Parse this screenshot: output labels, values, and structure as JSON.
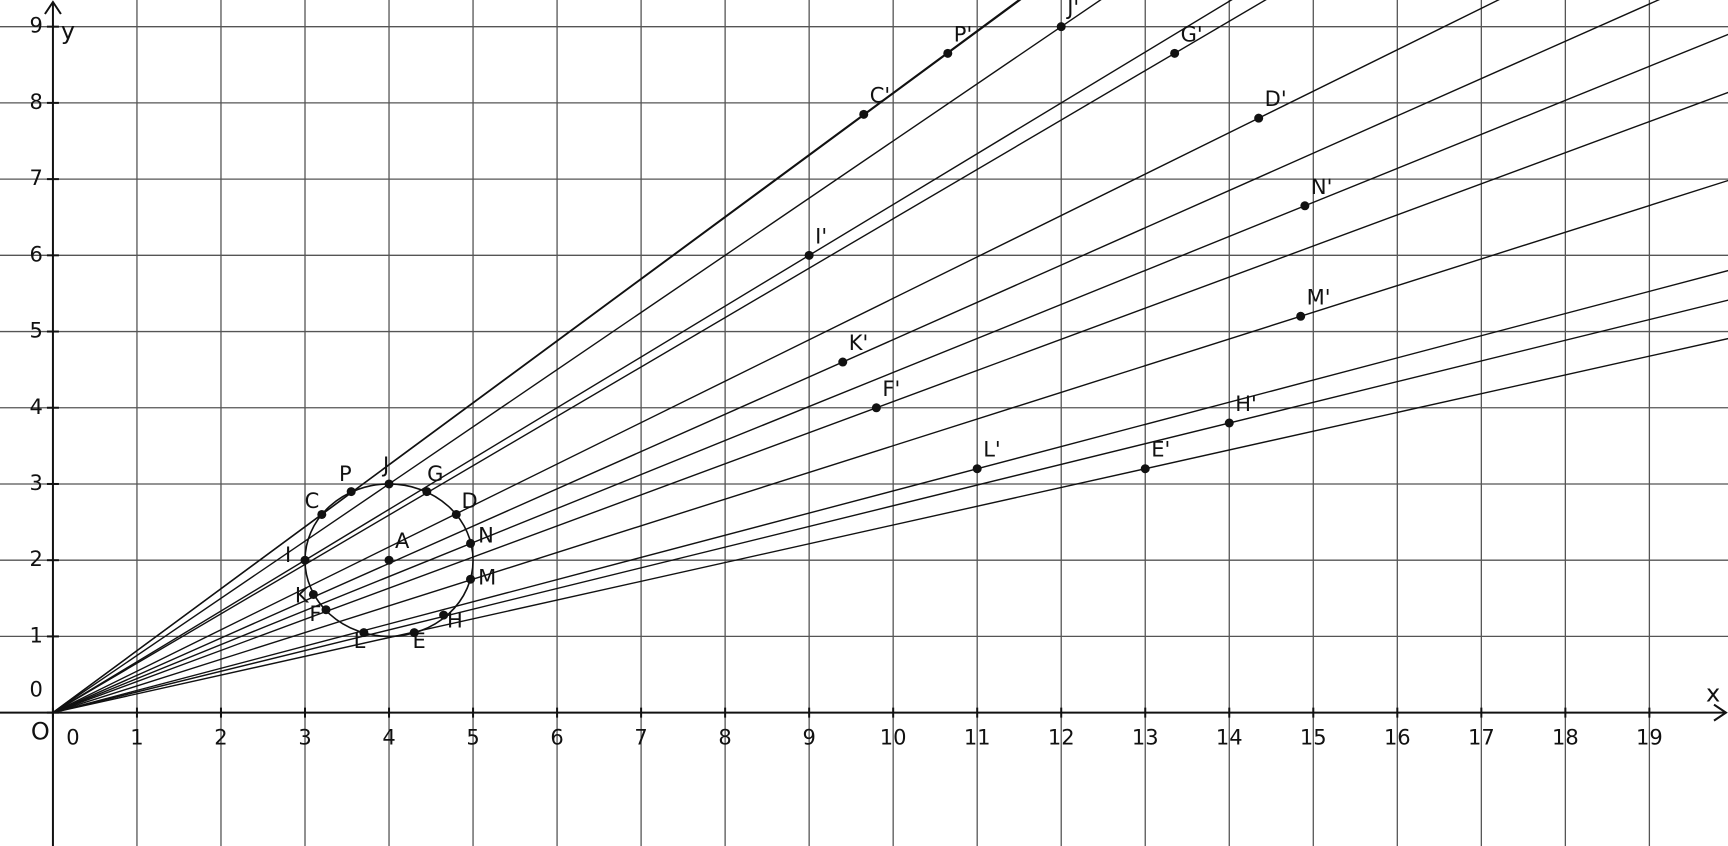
{
  "axes": {
    "x_label": "x",
    "y_label": "y",
    "origin_label": "O",
    "xlim": [
      -0.63,
      19.9
    ],
    "ylim": [
      -1.75,
      9.35
    ],
    "xticks": [
      0,
      1,
      2,
      3,
      4,
      5,
      6,
      7,
      8,
      9,
      10,
      11,
      12,
      13,
      14,
      15,
      16,
      17,
      18,
      19
    ],
    "yticks": [
      0,
      1,
      2,
      3,
      4,
      5,
      6,
      7,
      8,
      9
    ]
  },
  "circle": {
    "center": {
      "label": "A",
      "x": 4,
      "y": 2
    },
    "radius": 1
  },
  "points": [
    {
      "label": "C",
      "x": 3.2,
      "y": 2.6
    },
    {
      "label": "P",
      "x": 3.55,
      "y": 2.9
    },
    {
      "label": "J",
      "x": 4,
      "y": 3
    },
    {
      "label": "G",
      "x": 4.45,
      "y": 2.9
    },
    {
      "label": "D",
      "x": 4.8,
      "y": 2.6
    },
    {
      "label": "N",
      "x": 4.97,
      "y": 2.22
    },
    {
      "label": "M",
      "x": 4.97,
      "y": 1.75
    },
    {
      "label": "H",
      "x": 4.65,
      "y": 1.28
    },
    {
      "label": "E",
      "x": 4.3,
      "y": 1.05
    },
    {
      "label": "L",
      "x": 3.7,
      "y": 1.05
    },
    {
      "label": "F",
      "x": 3.25,
      "y": 1.35
    },
    {
      "label": "K",
      "x": 3.1,
      "y": 1.55
    },
    {
      "label": "I",
      "x": 3.0,
      "y": 2.0
    }
  ],
  "images": [
    {
      "label": "C'",
      "x": 9.65,
      "y": 7.85
    },
    {
      "label": "P'",
      "x": 10.65,
      "y": 8.65
    },
    {
      "label": "J'",
      "x": 12,
      "y": 9
    },
    {
      "label": "G'",
      "x": 13.35,
      "y": 8.65
    },
    {
      "label": "D'",
      "x": 14.35,
      "y": 7.8
    },
    {
      "label": "N'",
      "x": 14.9,
      "y": 6.65
    },
    {
      "label": "M'",
      "x": 14.85,
      "y": 5.2
    },
    {
      "label": "H'",
      "x": 14,
      "y": 3.8
    },
    {
      "label": "E'",
      "x": 13,
      "y": 3.2
    },
    {
      "label": "L'",
      "x": 11,
      "y": 3.2
    },
    {
      "label": "F'",
      "x": 9.8,
      "y": 4
    },
    {
      "label": "K'",
      "x": 9.4,
      "y": 4.6
    },
    {
      "label": "I'",
      "x": 9,
      "y": 6
    }
  ]
}
